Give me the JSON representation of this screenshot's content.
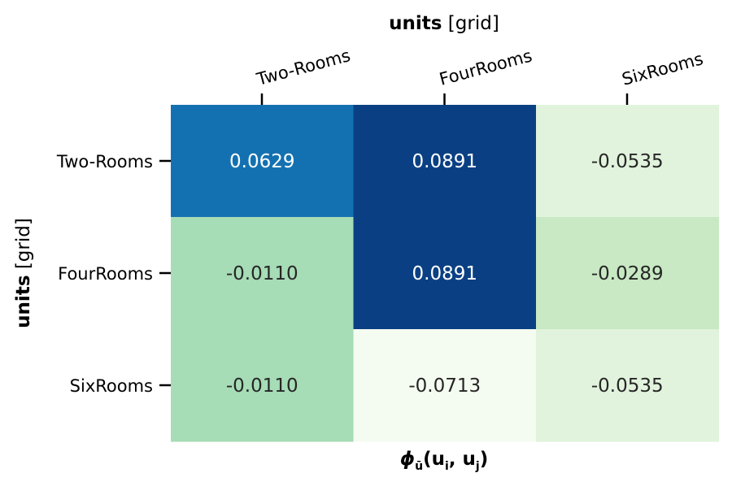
{
  "chart_data": {
    "type": "heatmap",
    "title": "",
    "x_axis": {
      "label_bold": "units",
      "label_rest": " [grid]",
      "position": "top",
      "categories": [
        "Two-Rooms",
        "FourRooms",
        "SixRooms"
      ]
    },
    "y_axis": {
      "label_bold": "units",
      "label_rest": " [grid]",
      "categories": [
        "Two-Rooms",
        "FourRooms",
        "SixRooms"
      ]
    },
    "bottom_label": "ϕū(ui, uj)",
    "values": [
      [
        0.0629,
        0.0891,
        -0.0535
      ],
      [
        -0.011,
        0.0891,
        -0.0289
      ],
      [
        -0.011,
        -0.0713,
        -0.0535
      ]
    ],
    "value_labels": [
      [
        "0.0629",
        "0.0891",
        "-0.0535"
      ],
      [
        "-0.0110",
        "0.0891",
        "-0.0289"
      ],
      [
        "-0.0110",
        "-0.0713",
        "-0.0535"
      ]
    ],
    "colormap": "GnBu",
    "colorbar": false,
    "cell_colors": [
      [
        "#1471b1",
        "#0a4083",
        "#e1f3dc"
      ],
      [
        "#a6dcb6",
        "#0a4083",
        "#c8e9c3"
      ],
      [
        "#a6dcb6",
        "#f4fbf0",
        "#e1f3dc"
      ]
    ],
    "text_color_dark_bg": "#ffffff",
    "text_color_light_bg": "#262626"
  }
}
